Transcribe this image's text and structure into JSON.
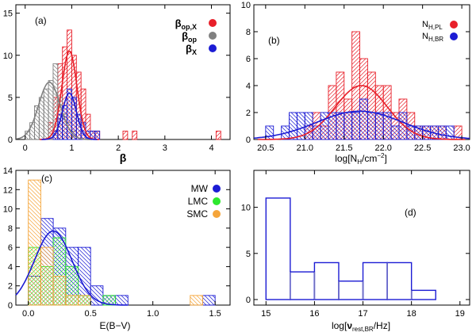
{
  "chart_data": [
    {
      "type": "bar",
      "panel_label": "(a)",
      "xlabel": "β",
      "ylabel": "",
      "xlim": [
        -0.2,
        4.4
      ],
      "ylim": [
        0,
        16
      ],
      "xticks": [
        "0",
        "1",
        "2",
        "3",
        "4"
      ],
      "yticks": [
        "0",
        "5",
        "10",
        "15"
      ],
      "legend_position": "top-right",
      "bin_width": 0.1,
      "series": [
        {
          "name": "β_op,X",
          "label_main": "β",
          "label_sub": "op,X",
          "color": "#e8202a",
          "hatch": "diag-right",
          "bins_start": [
            0.5,
            0.6,
            0.7,
            0.8,
            0.9,
            1.0,
            1.1,
            1.2,
            1.3,
            1.4,
            1.5,
            2.1,
            2.2,
            2.3,
            2.4,
            4.1,
            4.2
          ],
          "values": [
            2,
            5,
            9,
            11,
            13,
            10,
            8,
            6,
            3,
            1,
            1,
            1,
            0,
            1,
            0,
            1,
            0
          ],
          "fit": {
            "amplitude": 10.5,
            "mean": 0.95,
            "sigma": 0.16
          }
        },
        {
          "name": "β_op",
          "label_main": "β",
          "label_sub": "op",
          "color": "#808080",
          "hatch": "diag-left",
          "bins_start": [
            0.0,
            0.1,
            0.2,
            0.3,
            0.4,
            0.5,
            0.6,
            0.7,
            0.8,
            0.9,
            1.0
          ],
          "values": [
            1,
            2,
            4,
            5,
            6,
            7,
            9,
            5,
            3,
            2,
            1
          ],
          "fit": {
            "amplitude": 6.8,
            "mean": 0.52,
            "sigma": 0.23
          }
        },
        {
          "name": "β_X",
          "label_main": "β",
          "label_sub": "X",
          "color": "#1c1cd4",
          "hatch": "diag-left",
          "bins_start": [
            0.6,
            0.7,
            0.8,
            0.9,
            1.0,
            1.1,
            1.2,
            1.3,
            1.4,
            1.5
          ],
          "values": [
            1,
            3,
            4,
            6,
            5,
            3,
            2,
            1,
            1,
            1
          ],
          "fit": {
            "amplitude": 5.5,
            "mean": 0.95,
            "sigma": 0.15
          }
        }
      ]
    },
    {
      "type": "bar",
      "panel_label": "(b)",
      "xlabel": "log[N_H/cm^-2]",
      "xlabel_pre": "log[N",
      "xlabel_sub": "H",
      "xlabel_mid": "/cm",
      "xlabel_sup": "−2",
      "xlabel_post": "]",
      "ylabel": "",
      "xlim": [
        20.35,
        23.1
      ],
      "ylim": [
        0,
        10
      ],
      "xticks": [
        "20.5",
        "21.0",
        "21.5",
        "22.0",
        "22.5",
        "23.0"
      ],
      "yticks": [
        "0",
        "2",
        "4",
        "6",
        "8",
        "10"
      ],
      "legend_position": "top-right",
      "bin_width": 0.1,
      "series": [
        {
          "name": "N_H,PL",
          "label_main": "N",
          "label_sub": "H,PL",
          "color": "#e8202a",
          "hatch": "diag-right",
          "bins_start": [
            21.0,
            21.1,
            21.2,
            21.3,
            21.4,
            21.5,
            21.6,
            21.7,
            21.8,
            21.9,
            22.0,
            22.1,
            22.2,
            22.3,
            22.4,
            22.5,
            22.6,
            22.7,
            22.8,
            22.9
          ],
          "values": [
            1,
            2,
            1,
            4,
            5,
            3,
            8,
            6,
            5,
            4,
            4,
            2,
            3,
            2,
            1,
            1,
            1,
            1,
            0,
            1
          ],
          "fit": {
            "amplitude": 4.0,
            "mean": 21.72,
            "sigma": 0.33
          }
        },
        {
          "name": "N_H,BR",
          "label_main": "N",
          "label_sub": "H,BR",
          "color": "#1c1cd4",
          "hatch": "diag-left",
          "bins_start": [
            20.5,
            20.6,
            20.7,
            20.8,
            20.9,
            21.0,
            21.1,
            21.2,
            21.3,
            21.4,
            21.5,
            21.6,
            21.7,
            21.8,
            21.9,
            22.0,
            22.1,
            22.2,
            22.3,
            22.4,
            22.5,
            22.6,
            22.7,
            22.8
          ],
          "values": [
            1,
            0,
            1,
            2,
            2,
            2,
            1,
            2,
            2,
            2,
            2,
            2,
            3,
            2,
            2,
            2,
            1,
            2,
            1,
            1,
            1,
            1,
            1,
            1
          ],
          "fit": {
            "amplitude": 2.1,
            "mean": 21.7,
            "sigma": 0.55
          }
        }
      ]
    },
    {
      "type": "bar",
      "panel_label": "(c)",
      "xlabel": "E(B−V)",
      "ylabel": "",
      "xlim": [
        -0.1,
        1.62
      ],
      "ylim": [
        0,
        14
      ],
      "xticks": [
        "0.0",
        "0.5",
        "1.0",
        "1.5"
      ],
      "yticks": [
        "0",
        "2",
        "4",
        "6",
        "8",
        "10",
        "12",
        "14"
      ],
      "legend_position": "top-right",
      "bin_width": 0.1,
      "series": [
        {
          "name": "MW",
          "label_main": "MW",
          "label_sub": "",
          "color": "#1c1cd4",
          "hatch": "diag-left",
          "bins_start": [
            0.0,
            0.1,
            0.2,
            0.3,
            0.4,
            0.5,
            0.6,
            0.7,
            1.4
          ],
          "values": [
            3,
            9,
            8,
            6,
            6,
            2,
            1,
            1,
            1
          ],
          "fit": {
            "amplitude": 7.7,
            "mean": 0.2,
            "sigma": 0.15
          }
        },
        {
          "name": "LMC",
          "label_main": "LMC",
          "label_sub": "",
          "color": "#2ee82e",
          "hatch": "diag-right",
          "bins_start": [
            0.0,
            0.1,
            0.2,
            0.3,
            0.4,
            0.5,
            0.6
          ],
          "values": [
            6,
            4,
            7,
            4,
            1,
            0,
            1
          ],
          "fit": null
        },
        {
          "name": "SMC",
          "label_main": "SMC",
          "label_sub": "",
          "color": "#f5a53a",
          "hatch": "diag-left",
          "bins_start": [
            0.0,
            0.1,
            0.2,
            0.3,
            0.4,
            1.3
          ],
          "values": [
            13,
            6,
            3,
            1,
            1,
            1
          ],
          "fit": null
        }
      ]
    },
    {
      "type": "bar",
      "panel_label": "(d)",
      "xlabel": "log[ν_rest,BR/Hz]",
      "xlabel_pre": "log[",
      "xlabel_nu": "ν",
      "xlabel_sub": "rest,BR",
      "xlabel_post": "/Hz]",
      "ylabel": "",
      "xlim": [
        14.75,
        19.2
      ],
      "ylim": [
        -0.6,
        14
      ],
      "xticks": [
        "15",
        "16",
        "17",
        "18",
        "19"
      ],
      "yticks": [
        "0",
        "5",
        "10"
      ],
      "bin_width": 0.5,
      "series": [
        {
          "name": "ν_rest,BR",
          "color": "#1c1cd4",
          "bins_start": [
            15.0,
            15.5,
            16.0,
            16.5,
            17.0,
            17.5,
            18.0
          ],
          "values": [
            11,
            3,
            4,
            2,
            4,
            4,
            1
          ]
        }
      ]
    }
  ]
}
